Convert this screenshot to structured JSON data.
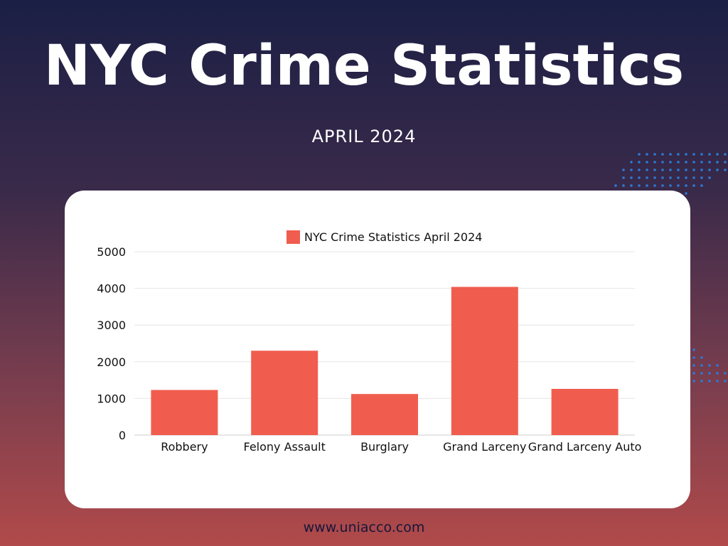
{
  "page": {
    "title": "NYC Crime Statistics",
    "subtitle": "APRIL 2024",
    "footer_url": "www.uniacco.com"
  },
  "colors": {
    "bar": "#f05d4e",
    "grid": "#e6e6e6",
    "axis_text": "#111111",
    "dots": "#2b7bd6"
  },
  "chart_data": {
    "type": "bar",
    "categories": [
      "Robbery",
      "Felony Assault",
      "Burglary",
      "Grand Larceny",
      "Grand Larceny Auto"
    ],
    "series": [
      {
        "name": "NYC Crime Statistics April 2024",
        "values": [
          1230,
          2300,
          1120,
          4040,
          1260
        ]
      }
    ],
    "title": "",
    "xlabel": "",
    "ylabel": "",
    "ylim": [
      0,
      5000
    ],
    "yticks": [
      0,
      1000,
      2000,
      3000,
      4000,
      5000
    ],
    "grid": true,
    "legend": "top-center"
  }
}
